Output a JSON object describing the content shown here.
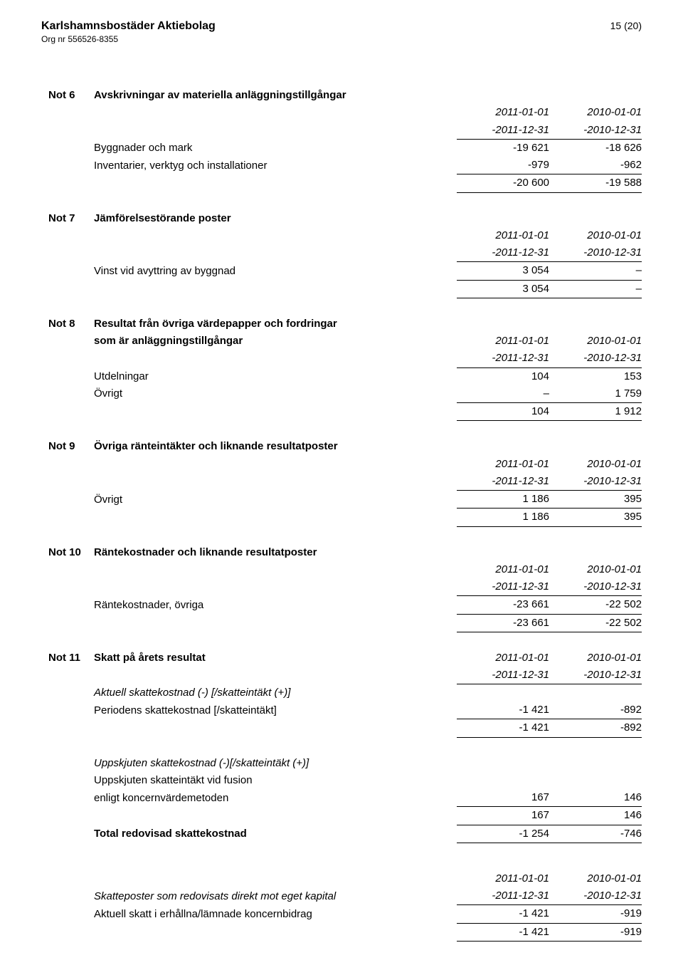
{
  "header": {
    "company": "Karlshamnsbostäder Aktiebolag",
    "org": "Org nr 556526-8355",
    "page": "15 (20)"
  },
  "periods": {
    "curr_start": "2011-01-01",
    "curr_end": "-2011-12-31",
    "prev_start": "2010-01-01",
    "prev_end": "-2010-12-31"
  },
  "n6": {
    "id": "Not 6",
    "title": "Avskrivningar av materiella anläggningstillgångar",
    "r1": {
      "label": "Byggnader och mark",
      "a": "-19 621",
      "b": "-18 626"
    },
    "r2": {
      "label": "Inventarier, verktyg och installationer",
      "a": "-979",
      "b": "-962"
    },
    "sum": {
      "a": "-20 600",
      "b": "-19 588"
    }
  },
  "n7": {
    "id": "Not 7",
    "title": "Jämförelsestörande poster",
    "r1": {
      "label": "Vinst vid avyttring av byggnad",
      "a": "3 054",
      "b": "–"
    },
    "sum": {
      "a": "3 054",
      "b": "–"
    }
  },
  "n8": {
    "id": "Not 8",
    "title1": "Resultat från övriga värdepapper och fordringar",
    "title2": "som är anläggningstillgångar",
    "r1": {
      "label": "Utdelningar",
      "a": "104",
      "b": "153"
    },
    "r2": {
      "label": "Övrigt",
      "a": "–",
      "b": "1 759"
    },
    "sum": {
      "a": "104",
      "b": "1 912"
    }
  },
  "n9": {
    "id": "Not 9",
    "title": "Övriga ränteintäkter och liknande resultatposter",
    "r1": {
      "label": "Övrigt",
      "a": "1 186",
      "b": "395"
    },
    "sum": {
      "a": "1 186",
      "b": "395"
    }
  },
  "n10": {
    "id": "Not 10",
    "title": "Räntekostnader och liknande resultatposter",
    "r1": {
      "label": "Räntekostnader, övriga",
      "a": "-23 661",
      "b": "-22 502"
    },
    "sum": {
      "a": "-23 661",
      "b": "-22 502"
    }
  },
  "n11": {
    "id": "Not 11",
    "title": "Skatt på årets resultat",
    "sec1": {
      "label": "Aktuell skattekostnad (-) [/skatteintäkt (+)]"
    },
    "r1": {
      "label": "Periodens skattekostnad [/skatteintäkt]",
      "a": "-1 421",
      "b": "-892"
    },
    "s1": {
      "a": "-1 421",
      "b": "-892"
    },
    "sec2": {
      "label": "Uppskjuten skattekostnad (-)[/skatteintäkt (+)]"
    },
    "r2a": {
      "label": "Uppskjuten skatteintäkt vid fusion"
    },
    "r2b": {
      "label": "enligt koncernvärdemetoden",
      "a": "167",
      "b": "146"
    },
    "s2": {
      "a": "167",
      "b": "146"
    },
    "tot": {
      "label": "Total redovisad skattekostnad",
      "a": "-1 254",
      "b": "-746"
    },
    "sec3": {
      "label": "Skatteposter som redovisats direkt mot eget kapital"
    },
    "r3": {
      "label": "Aktuell skatt i erhållna/lämnade koncernbidrag",
      "a": "-1 421",
      "b": "-919"
    },
    "s3": {
      "a": "-1 421",
      "b": "-919"
    }
  }
}
